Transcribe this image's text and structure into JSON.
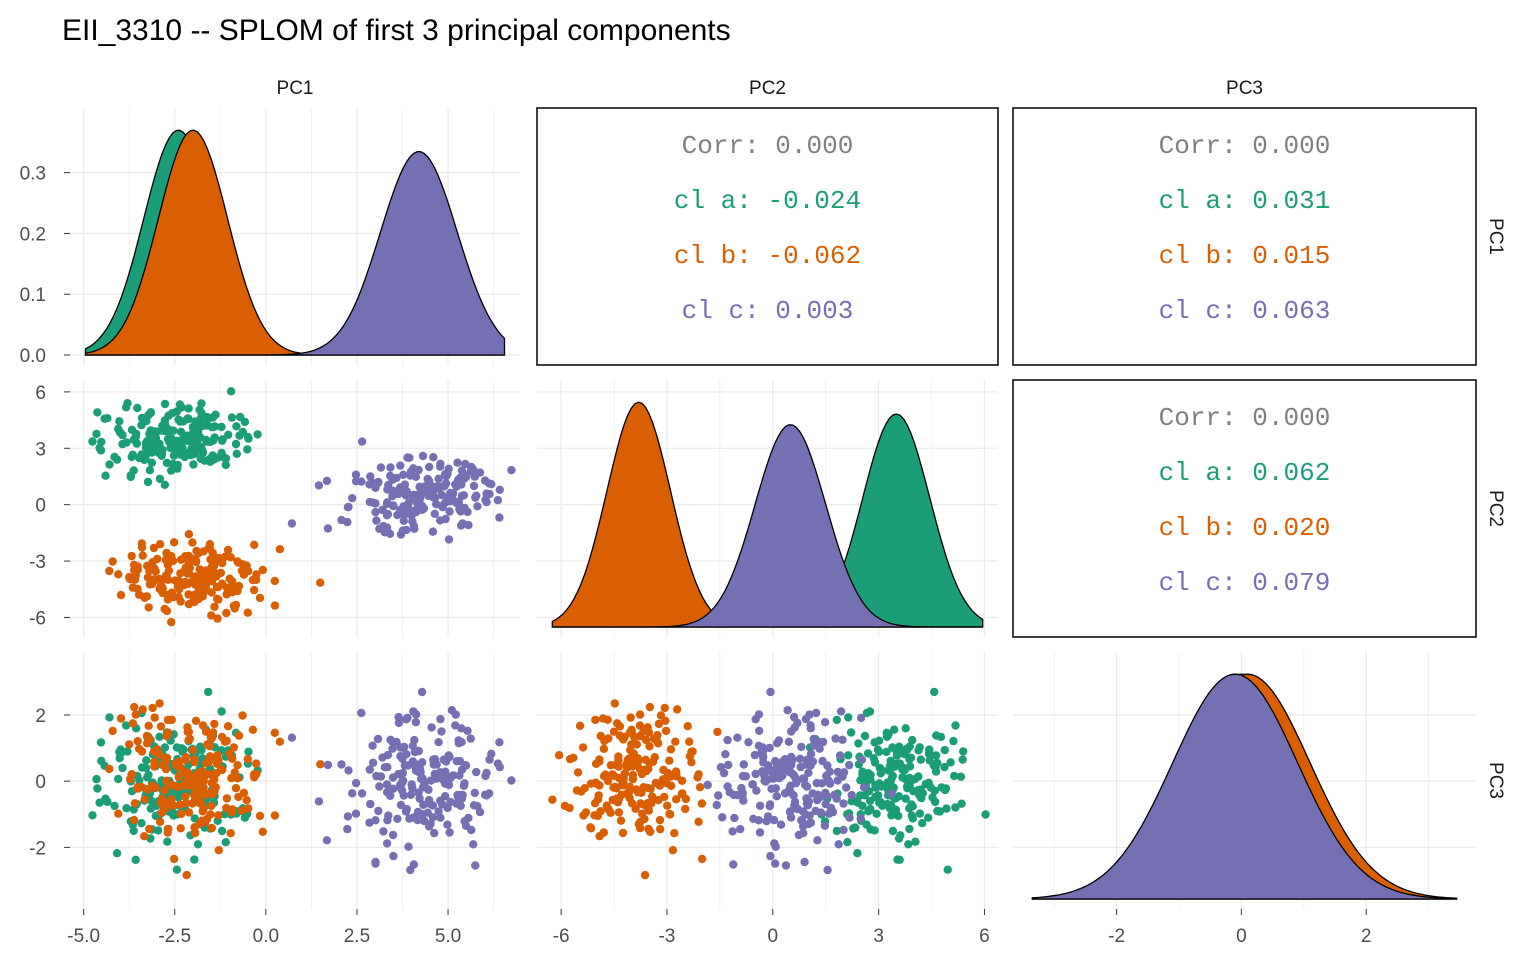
{
  "chart_data": {
    "type": "scatter",
    "title": "EII_3310 -- SPLOM of first 3 principal components",
    "variables": [
      "PC1",
      "PC2",
      "PC3"
    ],
    "groups": [
      {
        "name": "a",
        "color": "#1B9E77"
      },
      {
        "name": "b",
        "color": "#D95F02"
      },
      {
        "name": "c",
        "color": "#7570B3"
      }
    ],
    "axes": {
      "PC1": {
        "range": [
          -5.1,
          6.7
        ],
        "ticks": [
          -5.0,
          -2.5,
          0.0,
          2.5,
          5.0
        ],
        "tick_labels": [
          "-5.0",
          "-2.5",
          "0.0",
          "2.5",
          "5.0"
        ]
      },
      "PC2": {
        "range": [
          -6.4,
          6.1
        ],
        "ticks": [
          -6,
          -3,
          0,
          3,
          6
        ],
        "tick_labels": [
          "-6",
          "-3",
          "0",
          "3",
          "6"
        ]
      },
      "PC3": {
        "range": [
          -3.5,
          3.6
        ],
        "ticks": [
          -2,
          0,
          2
        ],
        "tick_labels": [
          "-2",
          "0",
          "2"
        ]
      }
    },
    "density_axis": {
      "range": [
        0,
        0.39
      ],
      "ticks": [
        0.0,
        0.1,
        0.2,
        0.3
      ],
      "tick_labels": [
        "0.0",
        "0.1",
        "0.2",
        "0.3"
      ]
    },
    "cluster_summary": {
      "a": {
        "PC1": {
          "mean": -2.4,
          "sd": 0.95
        },
        "PC2": {
          "mean": 3.5,
          "sd": 0.95
        },
        "PC3": {
          "mean": 0.0,
          "sd": 1.0
        }
      },
      "b": {
        "PC1": {
          "mean": -2.0,
          "sd": 0.95
        },
        "PC2": {
          "mean": -3.8,
          "sd": 0.9
        },
        "PC3": {
          "mean": 0.1,
          "sd": 1.0
        }
      },
      "c": {
        "PC1": {
          "mean": 4.2,
          "sd": 1.05
        },
        "PC2": {
          "mean": 0.5,
          "sd": 1.0
        },
        "PC3": {
          "mean": -0.1,
          "sd": 1.0
        }
      }
    },
    "correlations": [
      {
        "pair": [
          "PC1",
          "PC2"
        ],
        "lines": [
          {
            "label": "Corr: 0.000",
            "group": "overall"
          },
          {
            "label": "cl a: -0.024",
            "group": "a"
          },
          {
            "label": "cl b: -0.062",
            "group": "b"
          },
          {
            "label": "cl c: 0.003",
            "group": "c"
          }
        ]
      },
      {
        "pair": [
          "PC1",
          "PC3"
        ],
        "lines": [
          {
            "label": "Corr: 0.000",
            "group": "overall"
          },
          {
            "label": "cl a: 0.031",
            "group": "a"
          },
          {
            "label": "cl b: 0.015",
            "group": "b"
          },
          {
            "label": "cl c: 0.063",
            "group": "c"
          }
        ]
      },
      {
        "pair": [
          "PC2",
          "PC3"
        ],
        "lines": [
          {
            "label": "Corr: 0.000",
            "group": "overall"
          },
          {
            "label": "cl a: 0.062",
            "group": "a"
          },
          {
            "label": "cl b: 0.020",
            "group": "b"
          },
          {
            "label": "cl c: 0.079",
            "group": "c"
          }
        ]
      }
    ],
    "points_per_group": 200,
    "corr_colors": {
      "overall": "#808080",
      "a": "#1B9E77",
      "b": "#D95F02",
      "c": "#7570B3"
    },
    "grid": true,
    "legend": "none"
  }
}
